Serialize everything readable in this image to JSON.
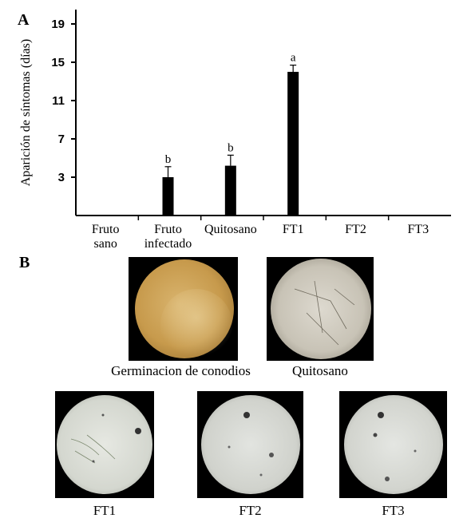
{
  "panel_a_label": "A",
  "panel_b_label": "B",
  "chart_data": {
    "type": "bar",
    "ylabel": "Aparición de síntomas (días)",
    "xlabel": "",
    "yticks": [
      3,
      7,
      11,
      15,
      19
    ],
    "ylim": [
      -1,
      20.5
    ],
    "categories": [
      "Fruto sano",
      "Fruto infectado",
      "Quitosano",
      "FT1",
      "FT2",
      "FT3"
    ],
    "category_lines": [
      [
        "Fruto",
        "sano"
      ],
      [
        "Fruto",
        "infectado"
      ],
      [
        "Quitosano"
      ],
      [
        "FT1"
      ],
      [
        "FT2"
      ],
      [
        "FT3"
      ]
    ],
    "values": [
      null,
      3,
      4.2,
      14,
      null,
      null
    ],
    "errors": [
      null,
      1.1,
      1.1,
      0.7,
      null,
      null
    ],
    "letters": [
      "",
      "b",
      "b",
      "a",
      "",
      ""
    ],
    "bar_color": "#000000"
  },
  "images": {
    "germination_caption": "Germinacion de conodios",
    "chitosan_caption": "Quitosano",
    "ft1_caption": "FT1",
    "ft2_caption": "FT2",
    "ft3_caption": "FT3"
  }
}
